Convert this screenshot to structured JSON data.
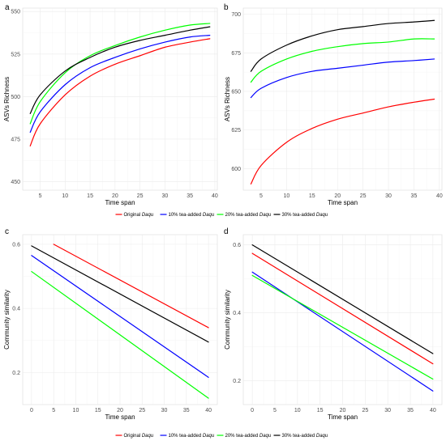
{
  "colors": {
    "original": "#ff0000",
    "tea10": "#0000ff",
    "tea20": "#00ff00",
    "tea30": "#000000",
    "grid": "#ebebeb",
    "panel_border": "#d9d9d9"
  },
  "legend": {
    "items": [
      {
        "key": "original",
        "prefix": "Original ",
        "emph": "Daqu"
      },
      {
        "key": "tea10",
        "prefix": "10% tea-added ",
        "emph": "Daqu"
      },
      {
        "key": "tea20",
        "prefix": "20% tea-added ",
        "emph": "Daqu"
      },
      {
        "key": "tea30",
        "prefix": "30% tea-added ",
        "emph": "Daqu"
      }
    ]
  },
  "chart_data": [
    {
      "panel": "a",
      "type": "line",
      "xlabel": "Time span",
      "ylabel": "ASVs Richness",
      "xlim": [
        1.5,
        40.5
      ],
      "ylim": [
        445,
        552
      ],
      "x_ticks": [
        5,
        10,
        15,
        20,
        25,
        30,
        35,
        40
      ],
      "y_ticks": [
        450,
        475,
        500,
        525,
        550
      ],
      "grid": true,
      "series": [
        {
          "key": "original",
          "x": [
            3,
            5,
            10,
            15,
            20,
            25,
            30,
            35,
            39
          ],
          "y": [
            471,
            484,
            501,
            512,
            519,
            524,
            529,
            532,
            534
          ]
        },
        {
          "key": "tea10",
          "x": [
            3,
            5,
            10,
            15,
            20,
            25,
            30,
            35,
            39
          ],
          "y": [
            479,
            491,
            507,
            517,
            523,
            528,
            532,
            535,
            536
          ]
        },
        {
          "key": "tea20",
          "x": [
            3,
            5,
            10,
            15,
            20,
            25,
            30,
            35,
            39
          ],
          "y": [
            484,
            497,
            514,
            524,
            530,
            535,
            539,
            542,
            543
          ]
        },
        {
          "key": "tea30",
          "x": [
            3,
            5,
            10,
            15,
            20,
            25,
            30,
            35,
            39
          ],
          "y": [
            490,
            501,
            515,
            523,
            529,
            533,
            536,
            539,
            541
          ]
        }
      ]
    },
    {
      "panel": "b",
      "type": "line",
      "xlabel": "Time span",
      "ylabel": "ASVs Richness",
      "xlim": [
        1.5,
        40.5
      ],
      "ylim": [
        586,
        704
      ],
      "x_ticks": [
        5,
        10,
        15,
        20,
        25,
        30,
        35,
        40
      ],
      "y_ticks": [
        600,
        625,
        650,
        675,
        700
      ],
      "grid": true,
      "series": [
        {
          "key": "original",
          "x": [
            3,
            5,
            10,
            15,
            20,
            25,
            30,
            35,
            39
          ],
          "y": [
            590,
            602,
            617,
            626,
            632,
            636,
            640,
            643,
            645
          ]
        },
        {
          "key": "tea10",
          "x": [
            3,
            5,
            10,
            15,
            20,
            25,
            30,
            35,
            39
          ],
          "y": [
            646,
            652,
            659,
            663,
            665,
            667,
            669,
            670,
            671
          ]
        },
        {
          "key": "tea20",
          "x": [
            3,
            5,
            10,
            15,
            20,
            25,
            30,
            35,
            39
          ],
          "y": [
            656,
            663,
            671,
            676,
            679,
            681,
            682,
            684,
            684
          ]
        },
        {
          "key": "tea30",
          "x": [
            3,
            5,
            10,
            15,
            20,
            25,
            30,
            35,
            39
          ],
          "y": [
            663,
            671,
            680,
            686,
            690,
            692,
            694,
            695,
            696
          ]
        }
      ]
    },
    {
      "panel": "c",
      "type": "line",
      "xlabel": "Time span",
      "ylabel": "Community similarity",
      "xlim": [
        -2,
        42
      ],
      "ylim": [
        0.1,
        0.63
      ],
      "x_ticks": [
        0,
        5,
        10,
        15,
        20,
        25,
        30,
        35,
        40
      ],
      "y_ticks": [
        0.2,
        0.4,
        0.6
      ],
      "grid": true,
      "series": [
        {
          "key": "original",
          "x": [
            5,
            40
          ],
          "y": [
            0.6,
            0.34
          ]
        },
        {
          "key": "tea10",
          "x": [
            0,
            40
          ],
          "y": [
            0.565,
            0.185
          ]
        },
        {
          "key": "tea20",
          "x": [
            0,
            40
          ],
          "y": [
            0.515,
            0.12
          ]
        },
        {
          "key": "tea30",
          "x": [
            0,
            40
          ],
          "y": [
            0.595,
            0.295
          ]
        }
      ]
    },
    {
      "panel": "d",
      "type": "line",
      "xlabel": "Time span",
      "ylabel": "Community similarity",
      "xlim": [
        -2,
        42
      ],
      "ylim": [
        0.13,
        0.63
      ],
      "x_ticks": [
        0,
        5,
        10,
        15,
        20,
        25,
        30,
        35,
        40
      ],
      "y_ticks": [
        0.2,
        0.4,
        0.6
      ],
      "grid": true,
      "series": [
        {
          "key": "original",
          "x": [
            0,
            40
          ],
          "y": [
            0.575,
            0.25
          ]
        },
        {
          "key": "tea10",
          "x": [
            0,
            40
          ],
          "y": [
            0.52,
            0.17
          ]
        },
        {
          "key": "tea20",
          "x": [
            0,
            40
          ],
          "y": [
            0.51,
            0.205
          ]
        },
        {
          "key": "tea30",
          "x": [
            0,
            40
          ],
          "y": [
            0.6,
            0.28
          ]
        }
      ]
    }
  ]
}
